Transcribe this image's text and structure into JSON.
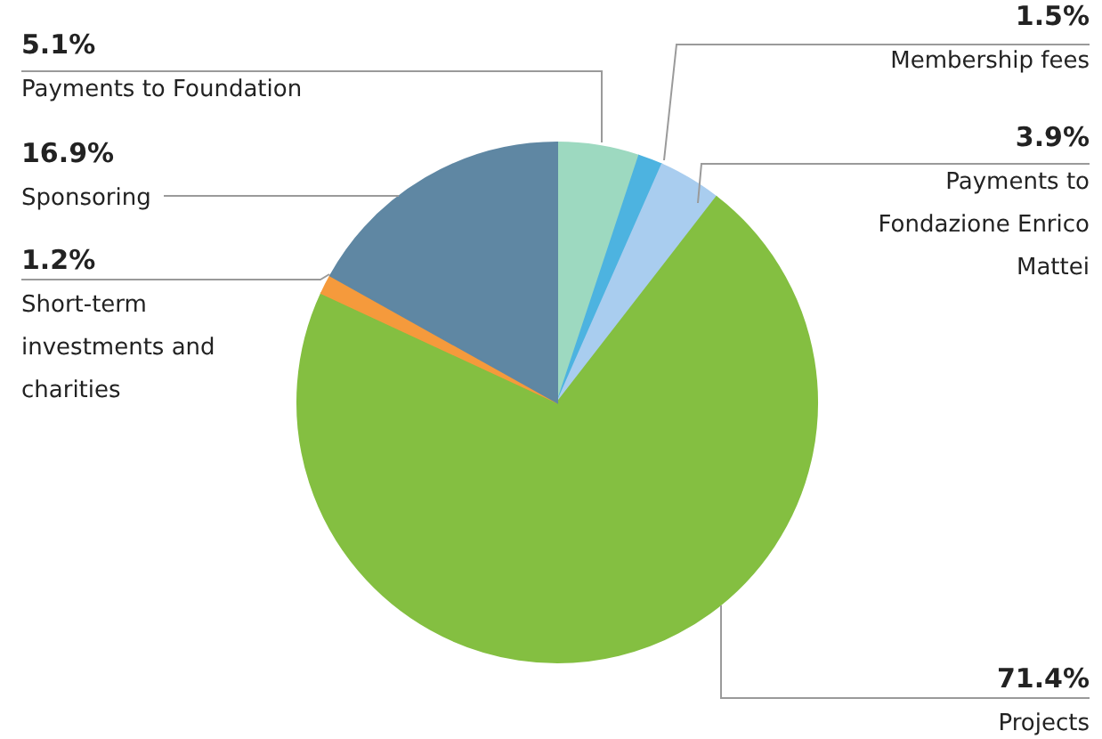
{
  "chart_data": {
    "type": "pie",
    "categories": [
      "Payments to Foundation",
      "Membership fees",
      "Payments to Fondazione Enrico Mattei",
      "Projects",
      "Short-term investments and charities",
      "Sponsoring"
    ],
    "values": [
      5.1,
      1.5,
      3.9,
      71.4,
      1.2,
      16.9
    ],
    "value_labels": [
      "5.1%",
      "1.5%",
      "3.9%",
      "71.4%",
      "1.2%",
      "16.9%"
    ],
    "colors": [
      "#9dd9c0",
      "#4db3e0",
      "#a9cdef",
      "#84bf41",
      "#f59a3c",
      "#5f87a3"
    ]
  }
}
